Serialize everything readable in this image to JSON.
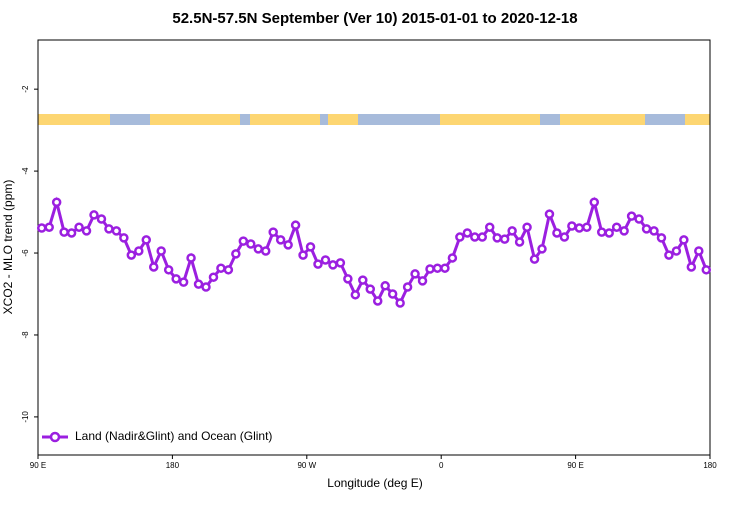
{
  "chart_data": {
    "type": "line",
    "title": "52.5N-57.5N September (Ver 10)   2015-01-01 to 2020-12-18",
    "x_label": "Longitude (deg E)",
    "y_label": "XCO2 - MLO trend (ppm)",
    "legend_position": "lower left",
    "xlim": [
      90,
      540
    ],
    "xticks": [
      {
        "value": 90,
        "label": "90 E"
      },
      {
        "value": 180,
        "label": "180"
      },
      {
        "value": 270,
        "label": "90 W"
      },
      {
        "value": 360,
        "label": "0"
      },
      {
        "value": 450,
        "label": "90 E"
      },
      {
        "value": 540,
        "label": "180"
      }
    ],
    "ylim": [
      -10.93,
      -0.8
    ],
    "yticks": [
      -10,
      -8,
      -6,
      -4,
      -2
    ],
    "x": [
      92.5,
      97.5,
      102.5,
      107.5,
      112.5,
      117.5,
      122.5,
      127.5,
      132.5,
      137.5,
      142.5,
      147.5,
      152.5,
      157.5,
      162.5,
      167.5,
      172.5,
      177.5,
      182.5,
      187.5,
      192.5,
      197.5,
      202.5,
      207.5,
      212.5,
      217.5,
      222.5,
      227.5,
      232.5,
      237.5,
      242.5,
      247.5,
      252.5,
      257.5,
      262.5,
      267.5,
      272.5,
      277.5,
      282.5,
      287.5,
      292.5,
      297.5,
      302.5,
      307.5,
      312.5,
      317.5,
      322.5,
      327.5,
      332.5,
      337.5,
      342.5,
      347.5,
      352.5,
      357.5,
      362.5,
      367.5,
      372.5,
      377.5,
      382.5,
      387.5,
      392.5,
      397.5,
      402.5,
      407.5,
      412.5,
      417.5,
      422.5,
      427.5,
      432.5,
      437.5,
      442.5,
      447.5,
      452.5,
      457.5,
      462.5,
      467.5,
      472.5,
      477.5,
      482.5,
      487.5,
      492.5,
      497.5,
      502.5,
      507.5,
      512.5,
      517.5,
      522.5,
      527.5,
      532.5,
      537.5
    ],
    "series": [
      {
        "name": "Land (Nadir&Glint) and Ocean (Glint)",
        "color": "#9b1fe0",
        "values": [
          -5.39,
          -5.37,
          -4.76,
          -5.49,
          -5.51,
          -5.37,
          -5.46,
          -5.07,
          -5.17,
          -5.41,
          -5.46,
          -5.63,
          -6.05,
          -5.95,
          -5.68,
          -6.34,
          -5.95,
          -6.41,
          -6.63,
          -6.71,
          -6.12,
          -6.76,
          -6.83,
          -6.59,
          -6.37,
          -6.41,
          -6.02,
          -5.71,
          -5.78,
          -5.9,
          -5.95,
          -5.49,
          -5.68,
          -5.8,
          -5.32,
          -6.05,
          -5.85,
          -6.27,
          -6.17,
          -6.29,
          -6.24,
          -6.63,
          -7.02,
          -6.66,
          -6.88,
          -7.17,
          -6.8,
          -7.0,
          -7.22,
          -6.83,
          -6.51,
          -6.68,
          -6.39,
          -6.37,
          -6.37,
          -6.12,
          -5.61,
          -5.51,
          -5.61,
          -5.61,
          -5.37,
          -5.63,
          -5.66,
          -5.46,
          -5.73,
          -5.37,
          -6.15,
          -5.9,
          -5.05,
          -5.51,
          -5.61,
          -5.34,
          -5.39,
          -5.37,
          -4.76,
          -5.49,
          -5.51,
          -5.37,
          -5.46,
          -5.1,
          -5.17,
          -5.41,
          -5.46,
          -5.63,
          -6.05,
          -5.95,
          -5.68,
          -6.34,
          -5.95,
          -6.41
        ]
      }
    ]
  }
}
